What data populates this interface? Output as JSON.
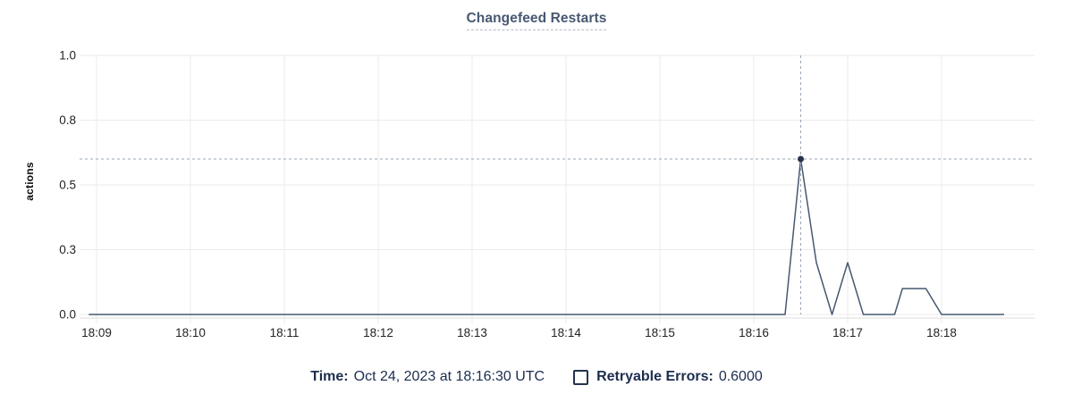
{
  "header": {
    "title": "Changefeed Restarts"
  },
  "chart_data": {
    "type": "line",
    "title": "Changefeed Restarts",
    "xlabel": "",
    "ylabel": "actions",
    "ylim": [
      0,
      1.0
    ],
    "grid": true,
    "x_tick_labels": [
      "18:09",
      "18:10",
      "18:11",
      "18:12",
      "18:13",
      "18:14",
      "18:15",
      "18:16",
      "18:17",
      "18:18"
    ],
    "y_ticks": [
      {
        "value": 0.0,
        "label": "0.0"
      },
      {
        "value": 0.25,
        "label": "0.3"
      },
      {
        "value": 0.5,
        "label": "0.5"
      },
      {
        "value": 0.75,
        "label": "0.8"
      },
      {
        "value": 1.0,
        "label": "1.0"
      }
    ],
    "series": [
      {
        "name": "Retryable Errors",
        "color": "#475872",
        "points": [
          [
            "18:08:55",
            0
          ],
          [
            "18:16:20",
            0
          ],
          [
            "18:16:30",
            0.6
          ],
          [
            "18:16:40",
            0.2
          ],
          [
            "18:16:50",
            0
          ],
          [
            "18:17:00",
            0.2
          ],
          [
            "18:17:10",
            0
          ],
          [
            "18:17:30",
            0
          ],
          [
            "18:17:35",
            0.1
          ],
          [
            "18:17:50",
            0.1
          ],
          [
            "18:18:00",
            0
          ],
          [
            "18:18:40",
            0
          ]
        ]
      }
    ],
    "hover_point": {
      "time": "18:16:30",
      "value": 0.6
    },
    "legend_position": "bottom"
  },
  "footer": {
    "time_label": "Time:",
    "time_value": "Oct 24, 2023 at 18:16:30 UTC",
    "legend_label": "Retryable Errors:",
    "legend_value": "0.6000"
  },
  "colors": {
    "line": "#475872",
    "grid": "#ebebeb",
    "axis_line": "#dcdcdc",
    "tick_text": "#242424",
    "crosshair": "#9aa7b6",
    "hover_dot": "#26334d",
    "title_text": "#475872",
    "footer_text": "#1c2e4f"
  }
}
